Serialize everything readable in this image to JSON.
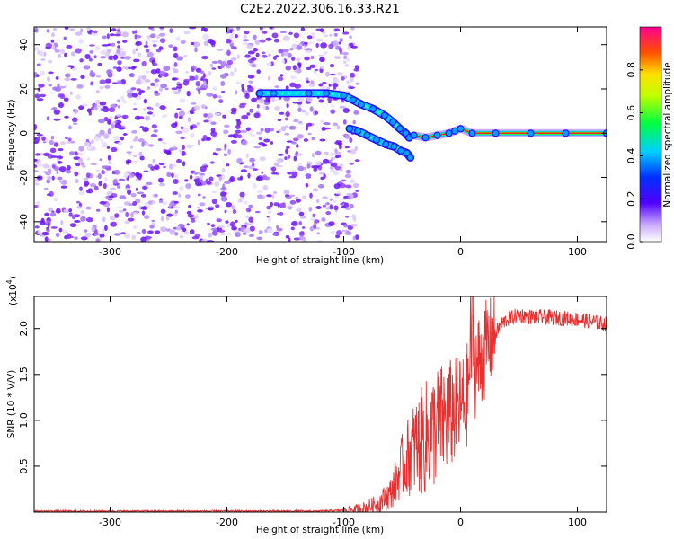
{
  "figure_title": "C2E2.2022.306.16.33.R21",
  "colors": {
    "snr_line": "#e83030",
    "noise_speckle": "#6a10ff",
    "background": "#ffffff"
  },
  "chart_data": [
    {
      "name": "spectrogram",
      "type": "heatmap",
      "title": "",
      "xlabel": "Height of straight line (km)",
      "ylabel": "Frequency (Hz)",
      "xlim": [
        -365,
        125
      ],
      "ylim": [
        -49,
        48
      ],
      "xticks": [
        -300,
        -200,
        -100,
        0,
        100
      ],
      "xtick_labels": [
        "-300",
        "-200",
        "-100",
        "0",
        "100"
      ],
      "yticks": [
        -40,
        -20,
        0,
        20,
        40
      ],
      "ytick_labels": [
        "-40",
        "-20",
        "0",
        "20",
        "40"
      ],
      "noise_region_x": [
        -365,
        -88
      ],
      "tracks": [
        {
          "name": "upper-branch",
          "x": [
            -172,
            -160,
            -130,
            -115,
            -100,
            -92,
            -85,
            -75,
            -65,
            -58,
            -52,
            -47,
            -44
          ],
          "y": [
            18,
            18,
            18,
            18,
            17,
            15,
            13,
            11,
            8,
            5,
            2,
            0,
            -2
          ]
        },
        {
          "name": "lower-branch",
          "x": [
            -95,
            -88,
            -80,
            -72,
            -64,
            -57,
            -51,
            -46,
            -43
          ],
          "y": [
            2,
            1,
            -1,
            -3,
            -5,
            -6,
            -8,
            -9,
            -11
          ]
        },
        {
          "name": "zero-line",
          "x": [
            -40,
            -30,
            -20,
            -10,
            -5,
            0,
            10,
            30,
            60,
            90,
            125
          ],
          "y": [
            -1,
            -2,
            -1,
            0,
            1,
            2,
            0,
            0,
            0,
            0,
            0
          ]
        }
      ],
      "colorbar": {
        "label": "Normalized spectral amplitude",
        "range": [
          0,
          1
        ],
        "ticks": [
          0.0,
          0.2,
          0.4,
          0.6,
          0.8
        ],
        "tick_labels": [
          "0.0",
          "0.2",
          "0.4",
          "0.6",
          "0.8"
        ]
      }
    },
    {
      "name": "snr",
      "type": "line",
      "title": "",
      "xlabel": "Height of straight line (km)",
      "ylabel": "SNR (10 * V/V)",
      "multiplier_label": "(x10",
      "multiplier_exp": "4",
      "multiplier_close": ")",
      "xlim": [
        -365,
        125
      ],
      "ylim": [
        0,
        2.35
      ],
      "xticks": [
        -300,
        -200,
        -100,
        0,
        100
      ],
      "xtick_labels": [
        "-300",
        "-200",
        "-100",
        "0",
        "100"
      ],
      "yticks": [
        0.5,
        1.0,
        1.5,
        2.0
      ],
      "ytick_labels": [
        "0.5",
        "1.0",
        "1.5",
        "2.0"
      ],
      "series": [
        {
          "name": "SNR",
          "x": [
            -365,
            -300,
            -200,
            -120,
            -100,
            -90,
            -80,
            -70,
            -60,
            -55,
            -50,
            -45,
            -40,
            -35,
            -30,
            -25,
            -20,
            -15,
            -10,
            -5,
            0,
            5,
            8,
            10,
            12,
            15,
            20,
            25,
            30,
            35,
            40,
            50,
            60,
            80,
            100,
            125
          ],
          "y": [
            0.01,
            0.01,
            0.01,
            0.01,
            0.02,
            0.03,
            0.05,
            0.1,
            0.2,
            0.35,
            0.5,
            0.6,
            0.7,
            0.75,
            0.8,
            0.85,
            0.95,
            1.0,
            1.05,
            1.1,
            1.15,
            1.2,
            1.6,
            2.2,
            1.6,
            1.6,
            1.75,
            1.85,
            1.95,
            2.05,
            2.1,
            2.15,
            2.13,
            2.12,
            2.1,
            2.05
          ]
        }
      ]
    }
  ]
}
